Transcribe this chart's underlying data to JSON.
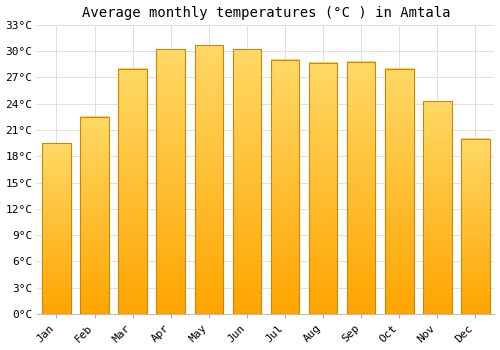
{
  "title": "Average monthly temperatures (°C ) in Amtala",
  "months": [
    "Jan",
    "Feb",
    "Mar",
    "Apr",
    "May",
    "Jun",
    "Jul",
    "Aug",
    "Sep",
    "Oct",
    "Nov",
    "Dec"
  ],
  "values": [
    19.5,
    22.5,
    28.0,
    30.2,
    30.7,
    30.2,
    29.0,
    28.7,
    28.8,
    28.0,
    24.3,
    20.0
  ],
  "bar_color_top": "#FFD966",
  "bar_color_bottom": "#FFA500",
  "bar_color_edge": "#CC8800",
  "ylim": [
    0,
    33
  ],
  "yticks": [
    0,
    3,
    6,
    9,
    12,
    15,
    18,
    21,
    24,
    27,
    30,
    33
  ],
  "ytick_labels": [
    "0°C",
    "3°C",
    "6°C",
    "9°C",
    "12°C",
    "15°C",
    "18°C",
    "21°C",
    "24°C",
    "27°C",
    "30°C",
    "33°C"
  ],
  "background_color": "#ffffff",
  "grid_color": "#e0e0e0",
  "title_fontsize": 10,
  "tick_fontsize": 8,
  "font_family": "monospace",
  "bar_width": 0.75
}
